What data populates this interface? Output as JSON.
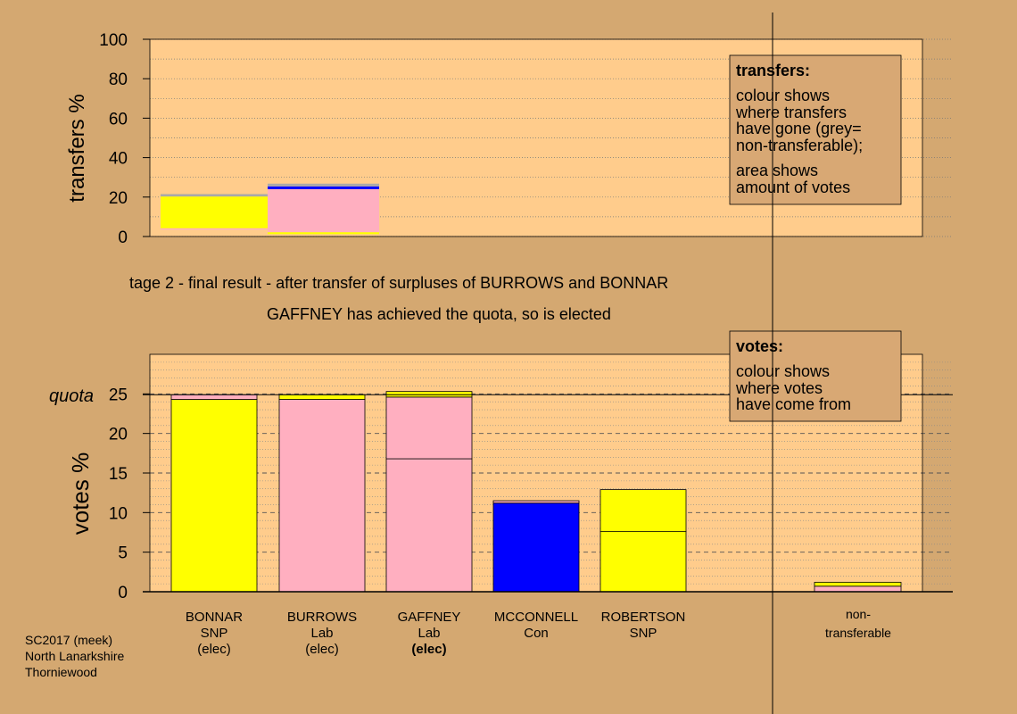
{
  "colors": {
    "page_bg": "#d4a871",
    "plot_bg": "#ffcc8c",
    "snp": "#ffff00",
    "lab": "#ffafc0",
    "con": "#0000ff",
    "non_transferable": "#a9a9a9",
    "box_bg": "#d8a874"
  },
  "stage_title": "tage 2 - final result - after transfer of surpluses of BURROWS and BONNAR",
  "stage_subtitle": "GAFFNEY has achieved the quota, so is elected",
  "quota_label": "quota",
  "footer": [
    "SC2017 (meek)",
    "North Lanarkshire",
    "Thorniewood"
  ],
  "transfers_box": {
    "title": "transfers:",
    "lines": [
      "colour shows",
      "where transfers",
      "have gone (grey=",
      "non-transferable);",
      "area shows",
      "amount of votes"
    ]
  },
  "votes_box": {
    "title": "votes:",
    "lines": [
      "colour shows",
      "where votes",
      "have come from"
    ]
  },
  "chart_data": [
    {
      "type": "bar",
      "name": "transfers",
      "ylabel": "transfers %",
      "ylim": [
        0,
        100
      ],
      "yticks": [
        0,
        20,
        40,
        60,
        80,
        100
      ],
      "grid": "dotted",
      "bars": [
        {
          "candidate": "BONNAR",
          "segments": [
            {
              "color": "#ffafc0",
              "from": 3.5,
              "to": 4.2
            },
            {
              "color": "#ffff00",
              "from": 4.2,
              "to": 20.3
            },
            {
              "color": "#a9a9a9",
              "from": 20.3,
              "to": 21.5
            }
          ]
        },
        {
          "candidate": "BURROWS",
          "segments": [
            {
              "color": "#ffff00",
              "from": 1.2,
              "to": 2.2
            },
            {
              "color": "#ffafc0",
              "from": 2.2,
              "to": 24.0
            },
            {
              "color": "#0000ff",
              "from": 24.0,
              "to": 25.4
            },
            {
              "color": "#a9a9a9",
              "from": 25.4,
              "to": 26.8
            }
          ]
        }
      ]
    },
    {
      "type": "bar",
      "name": "votes",
      "ylabel": "votes %",
      "ylim": [
        0,
        30
      ],
      "yticks": [
        0,
        5,
        10,
        15,
        20,
        25
      ],
      "quota": 24.9,
      "grid": "dotted",
      "categories": [
        {
          "line1": "BONNAR",
          "line2": "SNP",
          "line3": "(elec)",
          "bold3": false
        },
        {
          "line1": "BURROWS",
          "line2": "Lab",
          "line3": "(elec)",
          "bold3": false
        },
        {
          "line1": "GAFFNEY",
          "line2": "Lab",
          "line3": "(elec)",
          "bold3": true
        },
        {
          "line1": "MCCONNELL",
          "line2": "Con",
          "line3": "",
          "bold3": false
        },
        {
          "line1": "ROBERTSON",
          "line2": "SNP",
          "line3": "",
          "bold3": false
        }
      ],
      "nontransferable_label": [
        "non-",
        "transferable"
      ],
      "bars": [
        {
          "candidate": "BONNAR",
          "segments": [
            {
              "color": "#ffff00",
              "from": 0,
              "to": 24.3
            },
            {
              "color": "#ffafc0",
              "from": 24.3,
              "to": 24.9
            }
          ]
        },
        {
          "candidate": "BURROWS",
          "segments": [
            {
              "color": "#ffafc0",
              "from": 0,
              "to": 24.3
            },
            {
              "color": "#ffff00",
              "from": 24.3,
              "to": 24.9
            }
          ]
        },
        {
          "candidate": "GAFFNEY",
          "segments": [
            {
              "color": "#ffafc0",
              "from": 0,
              "to": 16.8
            },
            {
              "color": "#ffafc0",
              "from": 16.8,
              "to": 24.6
            },
            {
              "color": "#ffff00",
              "from": 24.6,
              "to": 25.3
            }
          ]
        },
        {
          "candidate": "MCCONNELL",
          "segments": [
            {
              "color": "#0000ff",
              "from": 0,
              "to": 11.2
            },
            {
              "color": "#ffafc0",
              "from": 11.2,
              "to": 11.5
            }
          ]
        },
        {
          "candidate": "ROBERTSON",
          "segments": [
            {
              "color": "#ffff00",
              "from": 0,
              "to": 7.6
            },
            {
              "color": "#ffff00",
              "from": 7.6,
              "to": 12.9
            }
          ]
        },
        {
          "candidate": "non-transferable",
          "segments": [
            {
              "color": "#ffafc0",
              "from": 0,
              "to": 0.7
            },
            {
              "color": "#ffff00",
              "from": 0.7,
              "to": 1.2
            }
          ]
        }
      ]
    }
  ]
}
